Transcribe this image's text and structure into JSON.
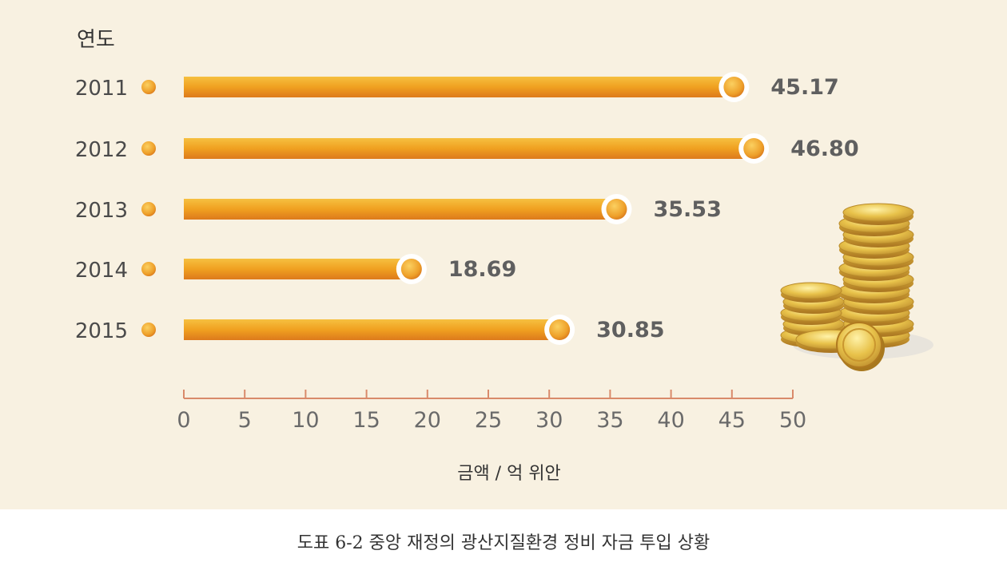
{
  "chart_data": {
    "type": "bar",
    "orientation": "horizontal",
    "title": "",
    "ylabel": "연도",
    "xlabel": "금액 / 억 위안",
    "categories": [
      "2011",
      "2012",
      "2013",
      "2014",
      "2015"
    ],
    "values": [
      45.17,
      46.8,
      35.53,
      18.69,
      30.85
    ],
    "value_labels": [
      "45.17",
      "46.80",
      "35.53",
      "18.69",
      "30.85"
    ],
    "xlim": [
      0,
      50
    ],
    "xticks": [
      0,
      5,
      10,
      15,
      20,
      25,
      30,
      35,
      40,
      45,
      50
    ],
    "grid": false,
    "colors": {
      "bar": "#f0a020",
      "bar_dark": "#dd7a1c",
      "axis": "#d98a6a",
      "marker": "#e88d2c",
      "background": "#f8f1e1"
    }
  },
  "caption": "도표 6-2 중앙 재정의 광산지질환경 정비 자금 투입 상황",
  "illustration": {
    "icon": "gold-coins-icon"
  }
}
